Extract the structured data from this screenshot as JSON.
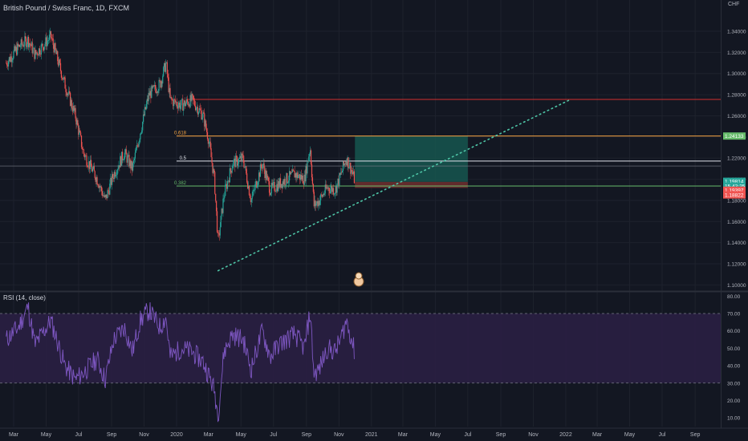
{
  "header": {
    "symbol_title": "British Pound / Swiss Franc, 1D, FXCM",
    "currency": "CHF",
    "rsi_title": "RSI (14, close)"
  },
  "colors": {
    "background": "#131722",
    "grid": "#1e222d",
    "up": "#26a69a",
    "down": "#ef5350",
    "fib_0618": "#f7a543",
    "fib_05": "#e0e3eb",
    "fib_0382": "#66bb6a",
    "resistance": "#d32f2f",
    "trendline": "#4ec6a7",
    "profit_zone": "#16564f",
    "stop_zone": "#6a2d2d",
    "rsi_line": "#7e57c2",
    "rsi_band": "#2a1f42"
  },
  "chart_data": [
    {
      "type": "candlestick",
      "title": "British Pound / Swiss Franc, 1D, FXCM",
      "ylabel": "CHF",
      "x_ticks": [
        "Mar",
        "May",
        "Jul",
        "Sep",
        "Nov",
        "2020",
        "Mar",
        "May",
        "Jul",
        "Sep",
        "Nov",
        "2021",
        "Mar",
        "May",
        "Jul",
        "Sep",
        "Nov",
        "2022",
        "Mar",
        "May",
        "Jul",
        "Sep"
      ],
      "y_ticks": [
        "1.34000",
        "1.32000",
        "1.30000",
        "1.28000",
        "1.26000",
        "1.24000",
        "1.22000",
        "1.20000",
        "1.18000",
        "1.16000",
        "1.14000",
        "1.12000",
        "1.10000"
      ],
      "ylim": [
        1.095,
        1.362
      ],
      "price_path": {
        "dates": [
          "2019-02-15",
          "2019-03-10",
          "2019-03-28",
          "2019-04-10",
          "2019-05-10",
          "2019-06-05",
          "2019-06-25",
          "2019-07-10",
          "2019-08-05",
          "2019-08-20",
          "2019-09-05",
          "2019-09-25",
          "2019-10-10",
          "2019-10-25",
          "2019-11-10",
          "2019-12-01",
          "2019-12-12",
          "2019-12-20",
          "2020-01-10",
          "2020-01-30",
          "2020-02-20",
          "2020-03-01",
          "2020-03-12",
          "2020-03-19",
          "2020-03-30",
          "2020-04-15",
          "2020-05-05",
          "2020-05-20",
          "2020-06-10",
          "2020-06-25",
          "2020-07-10",
          "2020-07-25",
          "2020-08-10",
          "2020-08-28",
          "2020-09-08",
          "2020-09-15",
          "2020-09-25",
          "2020-10-10",
          "2020-10-25",
          "2020-11-05",
          "2020-11-15",
          "2020-11-25",
          "2020-12-01"
        ],
        "close": [
          1.31,
          1.325,
          1.332,
          1.318,
          1.335,
          1.29,
          1.26,
          1.225,
          1.2,
          1.18,
          1.205,
          1.225,
          1.21,
          1.245,
          1.28,
          1.29,
          1.31,
          1.275,
          1.27,
          1.275,
          1.26,
          1.238,
          1.2,
          1.14,
          1.185,
          1.215,
          1.22,
          1.18,
          1.215,
          1.19,
          1.195,
          1.2,
          1.205,
          1.2,
          1.23,
          1.175,
          1.18,
          1.192,
          1.19,
          1.205,
          1.22,
          1.208,
          1.198
        ]
      },
      "levels": [
        {
          "name": "resistance",
          "price": 1.2755
        },
        {
          "name": "fib 0.618",
          "label": "0.618",
          "price": 1.2409
        },
        {
          "name": "fib 0.5",
          "label": "0.5",
          "price": 1.2172
        },
        {
          "name": "fib 0.382",
          "label": "0.382",
          "price": 1.1936
        },
        {
          "name": "recent high",
          "price": 1.1936
        }
      ],
      "trendline": {
        "points": [
          [
            "2020-03-19",
            1.1135
          ],
          [
            "2022-01-10",
            1.2755
          ]
        ]
      },
      "position": {
        "start": "2020-12-01",
        "end": "2021-07-01",
        "entry": 1.1975,
        "target": 1.2409,
        "stop": 1.1918
      },
      "price_labels": [
        {
          "text": "1.24133",
          "price": 1.2409,
          "color": "#66bb6a"
        },
        {
          "text": "1.19814",
          "price": 1.1981,
          "color": "#26a69a"
        },
        {
          "text": "15 42:25",
          "price": 1.1935,
          "color": "#26a69a"
        },
        {
          "text": "1.19397",
          "price": 1.1908,
          "color": "#ef5350"
        },
        {
          "text": "1.18822",
          "price": 1.1882,
          "color": "#ef5350"
        }
      ]
    },
    {
      "type": "line",
      "title": "RSI (14, close)",
      "y_ticks": [
        "80.00",
        "70.00",
        "60.00",
        "50.00",
        "40.00",
        "30.00",
        "20.00",
        "10.00"
      ],
      "ylim": [
        5,
        82
      ],
      "bands": [
        30,
        70
      ],
      "series": [
        {
          "dates": [
            "2019-02-15",
            "2019-03-10",
            "2019-03-28",
            "2019-04-10",
            "2019-05-10",
            "2019-06-05",
            "2019-06-25",
            "2019-07-10",
            "2019-08-05",
            "2019-08-20",
            "2019-09-05",
            "2019-09-25",
            "2019-10-10",
            "2019-10-25",
            "2019-11-10",
            "2019-12-01",
            "2019-12-12",
            "2019-12-20",
            "2020-01-10",
            "2020-01-30",
            "2020-02-20",
            "2020-03-01",
            "2020-03-12",
            "2020-03-19",
            "2020-03-30",
            "2020-04-15",
            "2020-05-05",
            "2020-05-20",
            "2020-06-10",
            "2020-06-25",
            "2020-07-10",
            "2020-07-25",
            "2020-08-10",
            "2020-08-28",
            "2020-09-08",
            "2020-09-15",
            "2020-09-25",
            "2020-10-10",
            "2020-10-25",
            "2020-11-05",
            "2020-11-15",
            "2020-11-25",
            "2020-12-01"
          ],
          "values": [
            55,
            62,
            74,
            52,
            66,
            40,
            32,
            36,
            44,
            32,
            55,
            62,
            48,
            66,
            72,
            62,
            68,
            45,
            50,
            48,
            42,
            35,
            26,
            11,
            48,
            58,
            55,
            38,
            60,
            45,
            52,
            55,
            58,
            50,
            71,
            35,
            38,
            50,
            48,
            56,
            66,
            55,
            47
          ]
        }
      ]
    }
  ]
}
